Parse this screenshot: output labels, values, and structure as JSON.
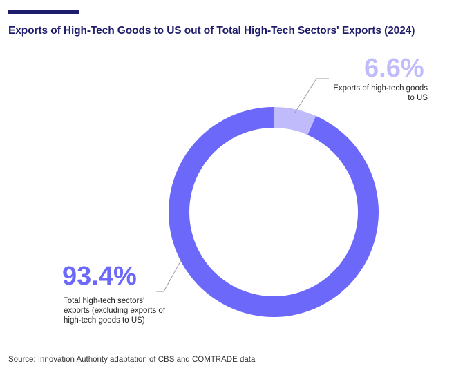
{
  "header": {
    "title": "Exports of High-Tech Goods to US out of Total High-Tech Sectors' Exports (2024)"
  },
  "chart_data": {
    "type": "pie",
    "variant": "donut",
    "title": "Exports of High-Tech Goods to US out of Total High-Tech Sectors' Exports (2024)",
    "slices": [
      {
        "label": "Exports of high-tech goods to US",
        "value": 6.6,
        "value_label": "6.6%",
        "color": "#c0bcfb"
      },
      {
        "label": "Total high-tech sectors' exports (excluding exports of high-tech goods to US)",
        "value": 93.4,
        "value_label": "93.4%",
        "color": "#6c68fa"
      }
    ],
    "unit": "%"
  },
  "footer": {
    "source": "Source: Innovation Authority adaptation of CBS and COMTRADE data"
  },
  "colors": {
    "title": "#1f1d6b",
    "accent_bar": "#1f1d6b",
    "leader_line": "#9a9a9a"
  }
}
